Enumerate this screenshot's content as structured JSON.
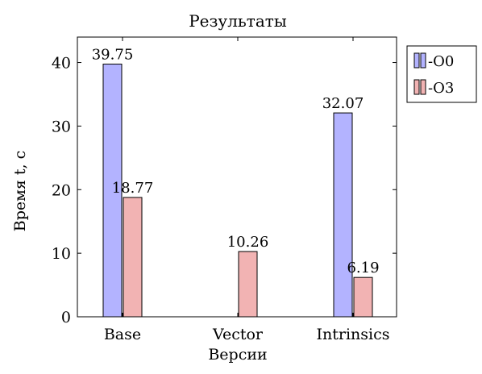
{
  "chart_data": {
    "type": "bar",
    "title": "Результаты",
    "xlabel": "Версии",
    "ylabel": "Время t, c",
    "categories": [
      "Base",
      "Vector",
      "Intrinsics"
    ],
    "ylim": [
      0,
      44
    ],
    "yticks": [
      0,
      10,
      20,
      30,
      40
    ],
    "grid": false,
    "legend_position": "outside-top-right",
    "series": [
      {
        "name": "-O0",
        "color": "#b3b3ff",
        "values": [
          39.75,
          null,
          32.07
        ],
        "labels": [
          "39.75",
          "",
          "32.07"
        ]
      },
      {
        "name": "-O3",
        "color": "#f2b3b3",
        "values": [
          18.77,
          10.26,
          6.19
        ],
        "labels": [
          "18.77",
          "10.26",
          "6.19"
        ]
      }
    ]
  }
}
